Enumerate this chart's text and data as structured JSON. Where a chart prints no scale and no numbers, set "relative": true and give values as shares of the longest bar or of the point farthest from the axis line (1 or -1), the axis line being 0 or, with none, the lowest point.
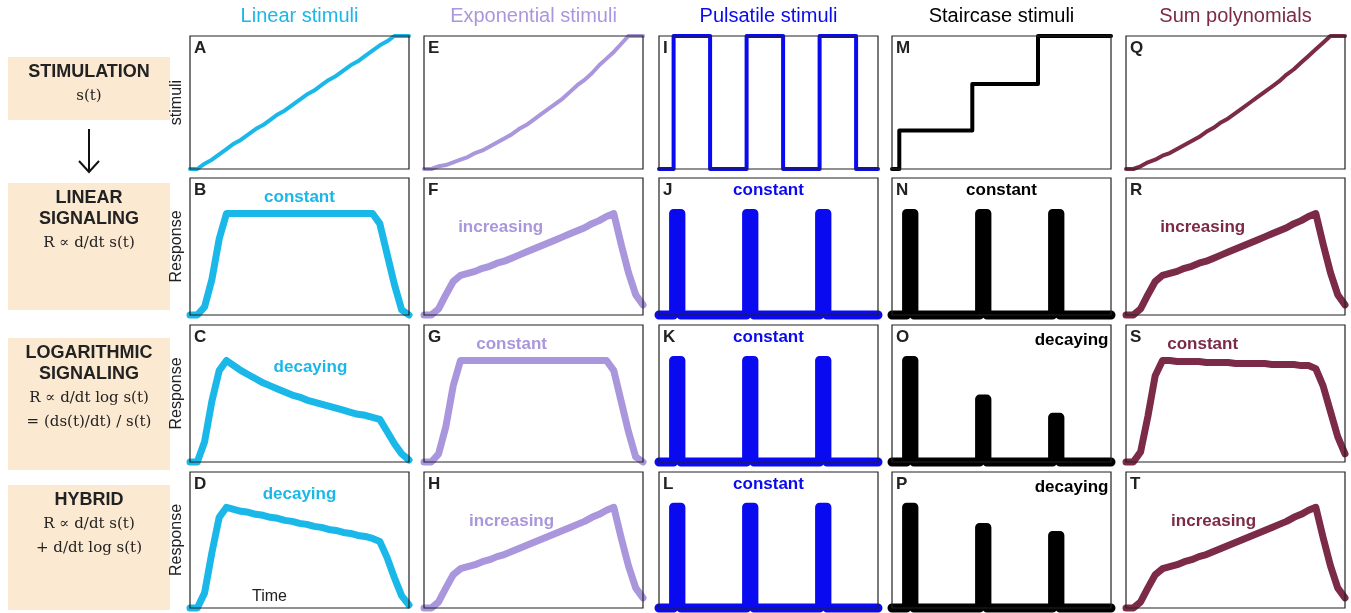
{
  "chart_data": [
    {
      "type": "other",
      "annotations": [
        "STIMULATION",
        "s(t)",
        "LINEAR SIGNALING",
        "R ∝ d/dt s(t)",
        "LOGARITHMIC SIGNALING",
        "R ∝ d/dt log s(t)",
        "= (ds(t)/dt) / s(t)",
        "HYBRID",
        "R ∝ d/dt s(t)",
        "+ d/dt log s(t)"
      ]
    },
    {
      "type": "line",
      "title": "Linear stimuli",
      "ylabel": "stimuli",
      "annotations": [
        "A"
      ],
      "relative": true,
      "categories": [
        null,
        null,
        null,
        null,
        null,
        null,
        null,
        null,
        null,
        null,
        null,
        null,
        null,
        null,
        null,
        null,
        null,
        null,
        null,
        null,
        null,
        null,
        null,
        null,
        null,
        null,
        null,
        null,
        null,
        null,
        null
      ],
      "color": "#1ab8e8",
      "values": [
        0,
        0,
        0.04,
        0.07,
        0.11,
        0.15,
        0.19,
        0.22,
        0.26,
        0.3,
        0.33,
        0.37,
        0.41,
        0.44,
        0.48,
        0.52,
        0.56,
        0.59,
        0.63,
        0.67,
        0.7,
        0.74,
        0.78,
        0.81,
        0.85,
        0.89,
        0.93,
        0.96,
        1,
        1,
        1
      ]
    },
    {
      "type": "line",
      "title": "Exponential stimuli",
      "annotations": [
        "E"
      ],
      "relative": true,
      "categories": [
        null,
        null,
        null,
        null,
        null,
        null,
        null,
        null,
        null,
        null,
        null,
        null,
        null,
        null,
        null,
        null,
        null,
        null,
        null,
        null,
        null,
        null,
        null,
        null,
        null,
        null,
        null,
        null,
        null,
        null,
        null
      ],
      "color": "#a996dc",
      "values": [
        0,
        0,
        0.02,
        0.03,
        0.05,
        0.07,
        0.09,
        0.12,
        0.14,
        0.17,
        0.2,
        0.23,
        0.26,
        0.3,
        0.33,
        0.37,
        0.41,
        0.45,
        0.49,
        0.53,
        0.58,
        0.63,
        0.67,
        0.72,
        0.78,
        0.83,
        0.88,
        0.94,
        1,
        1,
        1
      ]
    },
    {
      "type": "step",
      "title": "Pulsatile stimuli",
      "annotations": [
        "I"
      ],
      "relative": true,
      "categories": [
        null,
        null,
        null,
        null,
        null,
        null,
        null,
        null,
        null,
        null,
        null,
        null,
        null,
        null,
        null,
        null,
        null,
        null,
        null,
        null,
        null,
        null,
        null,
        null,
        null,
        null,
        null,
        null,
        null,
        null,
        null
      ],
      "color": "#0a0af0",
      "values": [
        0,
        0,
        0,
        1,
        1,
        1,
        1,
        1,
        0,
        0,
        0,
        0,
        0,
        1,
        1,
        1,
        1,
        1,
        0,
        0,
        0,
        0,
        0,
        1,
        1,
        1,
        1,
        1,
        0,
        0,
        0
      ]
    },
    {
      "type": "step",
      "title": "Staircase stimuli",
      "annotations": [
        "M"
      ],
      "relative": true,
      "categories": [
        null,
        null,
        null,
        null,
        null,
        null,
        null,
        null,
        null,
        null,
        null,
        null,
        null,
        null,
        null,
        null,
        null,
        null,
        null,
        null,
        null,
        null,
        null,
        null,
        null,
        null,
        null,
        null,
        null,
        null,
        null
      ],
      "color": "#000000",
      "values": [
        0,
        0,
        0.29,
        0.29,
        0.29,
        0.29,
        0.29,
        0.29,
        0.29,
        0.29,
        0.29,
        0.29,
        0.64,
        0.64,
        0.64,
        0.64,
        0.64,
        0.64,
        0.64,
        0.64,
        0.64,
        1,
        1,
        1,
        1,
        1,
        1,
        1,
        1,
        1,
        1
      ]
    },
    {
      "type": "line",
      "title": "Sum polynomials",
      "annotations": [
        "Q"
      ],
      "relative": true,
      "categories": [
        null,
        null,
        null,
        null,
        null,
        null,
        null,
        null,
        null,
        null,
        null,
        null,
        null,
        null,
        null,
        null,
        null,
        null,
        null,
        null,
        null,
        null,
        null,
        null,
        null,
        null,
        null,
        null,
        null,
        null,
        null
      ],
      "color": "#7b2a48",
      "values": [
        0,
        0,
        0.02,
        0.05,
        0.07,
        0.1,
        0.12,
        0.15,
        0.18,
        0.21,
        0.24,
        0.28,
        0.31,
        0.35,
        0.38,
        0.42,
        0.46,
        0.5,
        0.54,
        0.58,
        0.62,
        0.66,
        0.71,
        0.75,
        0.8,
        0.85,
        0.9,
        0.95,
        1,
        1,
        1
      ]
    },
    {
      "type": "line",
      "ylabel": "Response",
      "annotations": [
        "B",
        "constant"
      ],
      "relative": true,
      "categories": [
        null,
        null,
        null,
        null,
        null,
        null,
        null,
        null,
        null,
        null,
        null,
        null,
        null,
        null,
        null,
        null,
        null,
        null,
        null,
        null,
        null,
        null,
        null,
        null,
        null,
        null,
        null,
        null,
        null,
        null,
        null
      ],
      "color": "#1ab8e8",
      "values": [
        0,
        0,
        0.08,
        0.35,
        0.75,
        1,
        1,
        1,
        1,
        1,
        1,
        1,
        1,
        1,
        1,
        1,
        1,
        1,
        1,
        1,
        1,
        1,
        1,
        1,
        1,
        1,
        0.9,
        0.6,
        0.3,
        0.05,
        0
      ]
    },
    {
      "type": "line",
      "annotations": [
        "F",
        "increasing"
      ],
      "relative": true,
      "categories": [
        null,
        null,
        null,
        null,
        null,
        null,
        null,
        null,
        null,
        null,
        null,
        null,
        null,
        null,
        null,
        null,
        null,
        null,
        null,
        null,
        null,
        null,
        null,
        null,
        null,
        null,
        null,
        null,
        null,
        null,
        null
      ],
      "color": "#a996dc",
      "values": [
        0,
        0,
        0.06,
        0.2,
        0.33,
        0.39,
        0.41,
        0.43,
        0.46,
        0.48,
        0.51,
        0.53,
        0.56,
        0.59,
        0.62,
        0.65,
        0.68,
        0.71,
        0.74,
        0.77,
        0.8,
        0.83,
        0.86,
        0.9,
        0.93,
        0.97,
        1,
        0.7,
        0.42,
        0.2,
        0.1
      ]
    },
    {
      "type": "step",
      "annotations": [
        "J",
        "constant"
      ],
      "relative": true,
      "categories": [
        null,
        null,
        null,
        null,
        null,
        null,
        null,
        null,
        null,
        null,
        null,
        null,
        null,
        null,
        null,
        null,
        null,
        null,
        null,
        null,
        null,
        null,
        null,
        null,
        null,
        null,
        null,
        null,
        null,
        null,
        null
      ],
      "color": "#0a0af0",
      "values": [
        0,
        0,
        0,
        1,
        0,
        0,
        0,
        0,
        0,
        0,
        0,
        0,
        0,
        1,
        0,
        0,
        0,
        0,
        0,
        0,
        0,
        0,
        0,
        1,
        0,
        0,
        0,
        0,
        0,
        0,
        0
      ]
    },
    {
      "type": "step",
      "annotations": [
        "N",
        "constant"
      ],
      "relative": true,
      "categories": [
        null,
        null,
        null,
        null,
        null,
        null,
        null,
        null,
        null,
        null,
        null,
        null,
        null,
        null,
        null,
        null,
        null,
        null,
        null,
        null,
        null,
        null,
        null,
        null,
        null,
        null,
        null,
        null,
        null,
        null,
        null
      ],
      "color": "#000000",
      "values": [
        0,
        0,
        0,
        1,
        0,
        0,
        0,
        0,
        0,
        0,
        0,
        0,
        0,
        1,
        0,
        0,
        0,
        0,
        0,
        0,
        0,
        0,
        0,
        1,
        0,
        0,
        0,
        0,
        0,
        0,
        0
      ]
    },
    {
      "type": "line",
      "annotations": [
        "R",
        "increasing"
      ],
      "relative": true,
      "categories": [
        null,
        null,
        null,
        null,
        null,
        null,
        null,
        null,
        null,
        null,
        null,
        null,
        null,
        null,
        null,
        null,
        null,
        null,
        null,
        null,
        null,
        null,
        null,
        null,
        null,
        null,
        null,
        null,
        null,
        null,
        null
      ],
      "color": "#7b2a48",
      "values": [
        0,
        0,
        0.06,
        0.2,
        0.33,
        0.39,
        0.41,
        0.43,
        0.46,
        0.48,
        0.51,
        0.53,
        0.56,
        0.59,
        0.62,
        0.65,
        0.68,
        0.71,
        0.74,
        0.77,
        0.8,
        0.83,
        0.86,
        0.9,
        0.93,
        0.97,
        1,
        0.7,
        0.42,
        0.2,
        0.1
      ]
    },
    {
      "type": "line",
      "ylabel": "Response",
      "annotations": [
        "C",
        "decaying"
      ],
      "relative": true,
      "categories": [
        null,
        null,
        null,
        null,
        null,
        null,
        null,
        null,
        null,
        null,
        null,
        null,
        null,
        null,
        null,
        null,
        null,
        null,
        null,
        null,
        null,
        null,
        null,
        null,
        null,
        null,
        null,
        null,
        null,
        null,
        null
      ],
      "color": "#1ab8e8",
      "values": [
        0,
        0,
        0.2,
        0.6,
        0.9,
        1,
        0.95,
        0.9,
        0.86,
        0.82,
        0.78,
        0.75,
        0.72,
        0.69,
        0.66,
        0.64,
        0.61,
        0.59,
        0.57,
        0.55,
        0.53,
        0.51,
        0.49,
        0.47,
        0.46,
        0.44,
        0.42,
        0.3,
        0.18,
        0.08,
        0.02
      ]
    },
    {
      "type": "line",
      "annotations": [
        "G",
        "constant"
      ],
      "relative": true,
      "categories": [
        null,
        null,
        null,
        null,
        null,
        null,
        null,
        null,
        null,
        null,
        null,
        null,
        null,
        null,
        null,
        null,
        null,
        null,
        null,
        null,
        null,
        null,
        null,
        null,
        null,
        null,
        null,
        null,
        null,
        null,
        null
      ],
      "color": "#a996dc",
      "values": [
        0,
        0,
        0.08,
        0.35,
        0.75,
        1,
        1,
        1,
        1,
        1,
        1,
        1,
        1,
        1,
        1,
        1,
        1,
        1,
        1,
        1,
        1,
        1,
        1,
        1,
        1,
        1,
        0.9,
        0.6,
        0.3,
        0.05,
        0
      ]
    },
    {
      "type": "step",
      "annotations": [
        "K",
        "constant"
      ],
      "relative": true,
      "categories": [
        null,
        null,
        null,
        null,
        null,
        null,
        null,
        null,
        null,
        null,
        null,
        null,
        null,
        null,
        null,
        null,
        null,
        null,
        null,
        null,
        null,
        null,
        null,
        null,
        null,
        null,
        null,
        null,
        null,
        null,
        null
      ],
      "color": "#0a0af0",
      "values": [
        0,
        0,
        0,
        1,
        0,
        0,
        0,
        0,
        0,
        0,
        0,
        0,
        0,
        1,
        0,
        0,
        0,
        0,
        0,
        0,
        0,
        0,
        0,
        1,
        0,
        0,
        0,
        0,
        0,
        0,
        0
      ]
    },
    {
      "type": "step",
      "annotations": [
        "O",
        "decaying"
      ],
      "relative": true,
      "categories": [
        null,
        null,
        null,
        null,
        null,
        null,
        null,
        null,
        null,
        null,
        null,
        null,
        null,
        null,
        null,
        null,
        null,
        null,
        null,
        null,
        null,
        null,
        null,
        null,
        null,
        null,
        null,
        null,
        null,
        null,
        null
      ],
      "color": "#000000",
      "values": [
        0,
        0,
        0,
        1,
        0,
        0,
        0,
        0,
        0,
        0,
        0,
        0,
        0,
        0.62,
        0,
        0,
        0,
        0,
        0,
        0,
        0,
        0,
        0,
        0.44,
        0,
        0,
        0,
        0,
        0,
        0,
        0
      ]
    },
    {
      "type": "line",
      "annotations": [
        "S",
        "constant"
      ],
      "relative": true,
      "categories": [
        null,
        null,
        null,
        null,
        null,
        null,
        null,
        null,
        null,
        null,
        null,
        null,
        null,
        null,
        null,
        null,
        null,
        null,
        null,
        null,
        null,
        null,
        null,
        null,
        null,
        null,
        null,
        null,
        null,
        null,
        null
      ],
      "color": "#7b2a48",
      "values": [
        0,
        0,
        0.1,
        0.45,
        0.85,
        1,
        1,
        0.99,
        0.99,
        0.99,
        0.99,
        0.98,
        0.98,
        0.98,
        0.98,
        0.97,
        0.97,
        0.97,
        0.97,
        0.97,
        0.96,
        0.96,
        0.96,
        0.96,
        0.95,
        0.95,
        0.92,
        0.75,
        0.5,
        0.25,
        0.08
      ]
    },
    {
      "type": "line",
      "ylabel": "Response",
      "xlabel": "Time",
      "annotations": [
        "D",
        "decaying"
      ],
      "relative": true,
      "categories": [
        null,
        null,
        null,
        null,
        null,
        null,
        null,
        null,
        null,
        null,
        null,
        null,
        null,
        null,
        null,
        null,
        null,
        null,
        null,
        null,
        null,
        null,
        null,
        null,
        null,
        null,
        null,
        null,
        null,
        null,
        null
      ],
      "color": "#1ab8e8",
      "values": [
        0,
        0,
        0.15,
        0.55,
        0.9,
        1,
        0.98,
        0.96,
        0.95,
        0.93,
        0.92,
        0.9,
        0.89,
        0.87,
        0.86,
        0.84,
        0.83,
        0.81,
        0.8,
        0.78,
        0.77,
        0.75,
        0.74,
        0.72,
        0.71,
        0.69,
        0.66,
        0.5,
        0.3,
        0.12,
        0.03
      ]
    },
    {
      "type": "line",
      "annotations": [
        "H",
        "increasing"
      ],
      "relative": true,
      "categories": [
        null,
        null,
        null,
        null,
        null,
        null,
        null,
        null,
        null,
        null,
        null,
        null,
        null,
        null,
        null,
        null,
        null,
        null,
        null,
        null,
        null,
        null,
        null,
        null,
        null,
        null,
        null,
        null,
        null,
        null,
        null
      ],
      "color": "#a996dc",
      "values": [
        0,
        0,
        0.06,
        0.2,
        0.33,
        0.39,
        0.41,
        0.43,
        0.46,
        0.48,
        0.51,
        0.53,
        0.56,
        0.59,
        0.62,
        0.65,
        0.68,
        0.71,
        0.74,
        0.77,
        0.8,
        0.83,
        0.86,
        0.9,
        0.93,
        0.97,
        1,
        0.7,
        0.42,
        0.2,
        0.1
      ]
    },
    {
      "type": "step",
      "annotations": [
        "L",
        "constant"
      ],
      "relative": true,
      "categories": [
        null,
        null,
        null,
        null,
        null,
        null,
        null,
        null,
        null,
        null,
        null,
        null,
        null,
        null,
        null,
        null,
        null,
        null,
        null,
        null,
        null,
        null,
        null,
        null,
        null,
        null,
        null,
        null,
        null,
        null,
        null
      ],
      "color": "#0a0af0",
      "values": [
        0,
        0,
        0,
        1,
        0,
        0,
        0,
        0,
        0,
        0,
        0,
        0,
        0,
        1,
        0,
        0,
        0,
        0,
        0,
        0,
        0,
        0,
        0,
        1,
        0,
        0,
        0,
        0,
        0,
        0,
        0
      ]
    },
    {
      "type": "step",
      "annotations": [
        "P",
        "decaying"
      ],
      "relative": true,
      "categories": [
        null,
        null,
        null,
        null,
        null,
        null,
        null,
        null,
        null,
        null,
        null,
        null,
        null,
        null,
        null,
        null,
        null,
        null,
        null,
        null,
        null,
        null,
        null,
        null,
        null,
        null,
        null,
        null,
        null,
        null,
        null
      ],
      "color": "#000000",
      "values": [
        0,
        0,
        0,
        1,
        0,
        0,
        0,
        0,
        0,
        0,
        0,
        0,
        0,
        0.8,
        0,
        0,
        0,
        0,
        0,
        0,
        0,
        0,
        0,
        0.72,
        0,
        0,
        0,
        0,
        0,
        0,
        0
      ]
    },
    {
      "type": "line",
      "annotations": [
        "T",
        "increasing"
      ],
      "relative": true,
      "categories": [
        null,
        null,
        null,
        null,
        null,
        null,
        null,
        null,
        null,
        null,
        null,
        null,
        null,
        null,
        null,
        null,
        null,
        null,
        null,
        null,
        null,
        null,
        null,
        null,
        null,
        null,
        null,
        null,
        null,
        null,
        null
      ],
      "color": "#7b2a48",
      "values": [
        0,
        0,
        0.06,
        0.2,
        0.33,
        0.39,
        0.41,
        0.43,
        0.46,
        0.48,
        0.51,
        0.53,
        0.56,
        0.59,
        0.62,
        0.65,
        0.68,
        0.71,
        0.74,
        0.77,
        0.8,
        0.83,
        0.86,
        0.9,
        0.93,
        0.97,
        1,
        0.7,
        0.42,
        0.2,
        0.1
      ]
    }
  ]
}
